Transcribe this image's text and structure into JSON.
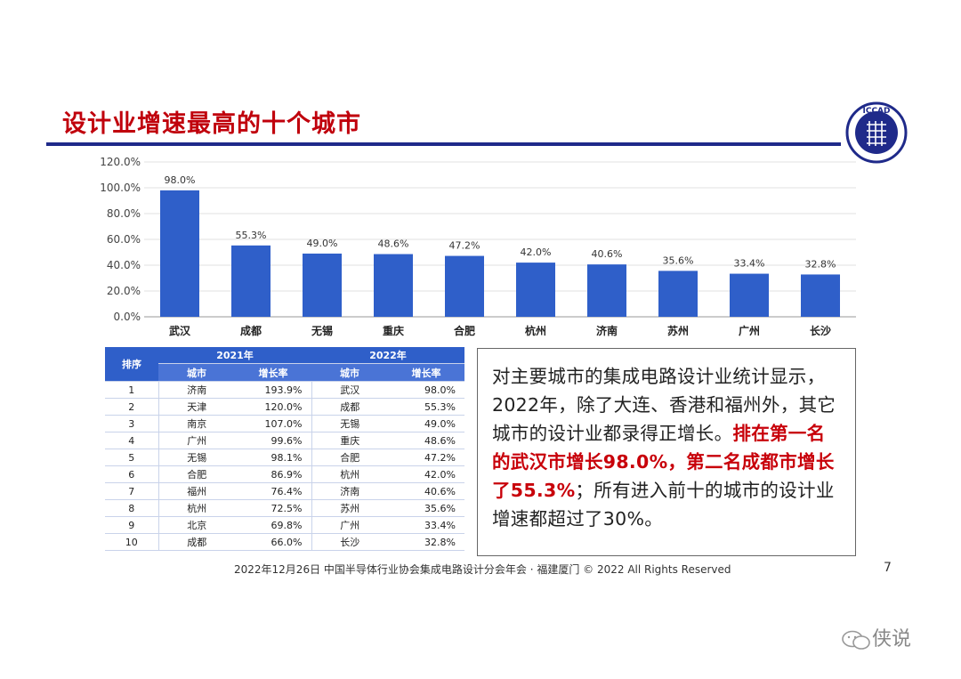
{
  "title": "设计业增速最高的十个城市",
  "logo": {
    "text": "ICCAD",
    "subtext": "中国半导体行业协会集成电路设计分会"
  },
  "chart_data": {
    "type": "bar",
    "title": "",
    "xlabel": "",
    "ylabel": "",
    "categories": [
      "武汉",
      "成都",
      "无锡",
      "重庆",
      "合肥",
      "杭州",
      "济南",
      "苏州",
      "广州",
      "长沙"
    ],
    "values": [
      98.0,
      55.3,
      49.0,
      48.6,
      47.2,
      42.0,
      40.6,
      35.6,
      33.4,
      32.8
    ],
    "data_labels": [
      "98.0%",
      "55.3%",
      "49.0%",
      "48.6%",
      "47.2%",
      "42.0%",
      "40.6%",
      "35.6%",
      "33.4%",
      "32.8%"
    ],
    "ylim": [
      0,
      120
    ],
    "yticks": [
      "0.0%",
      "20.0%",
      "40.0%",
      "60.0%",
      "80.0%",
      "100.0%",
      "120.0%"
    ],
    "grid": true,
    "bar_color": "#2f5fc9"
  },
  "table": {
    "rank_header": "排序",
    "year_headers": [
      "2021年",
      "2022年"
    ],
    "sub_headers": [
      "城市",
      "增长率",
      "城市",
      "增长率"
    ],
    "rows": [
      [
        "1",
        "济南",
        "193.9%",
        "武汉",
        "98.0%"
      ],
      [
        "2",
        "天津",
        "120.0%",
        "成都",
        "55.3%"
      ],
      [
        "3",
        "南京",
        "107.0%",
        "无锡",
        "49.0%"
      ],
      [
        "4",
        "广州",
        "99.6%",
        "重庆",
        "48.6%"
      ],
      [
        "5",
        "无锡",
        "98.1%",
        "合肥",
        "47.2%"
      ],
      [
        "6",
        "合肥",
        "86.9%",
        "杭州",
        "42.0%"
      ],
      [
        "7",
        "福州",
        "76.4%",
        "济南",
        "40.6%"
      ],
      [
        "8",
        "杭州",
        "72.5%",
        "苏州",
        "35.6%"
      ],
      [
        "9",
        "北京",
        "69.8%",
        "广州",
        "33.4%"
      ],
      [
        "10",
        "成都",
        "66.0%",
        "长沙",
        "32.8%"
      ]
    ]
  },
  "summary": {
    "part1": "对主要城市的集成电路设计业统计显示，2022年，除了大连、香港和福州外，其它城市的设计业都录得正增长。",
    "highlight": "排在第一名的武汉市增长98.0%，第二名成都市增长了55.3%",
    "part2": "；所有进入前十的城市的设计业增速都超过了30%。"
  },
  "footer": "2022年12月26日 中国半导体行业协会集成电路设计分会年会 · 福建厦门 © 2022 All Rights Reserved",
  "page_number": "7",
  "watermark": "侠说"
}
